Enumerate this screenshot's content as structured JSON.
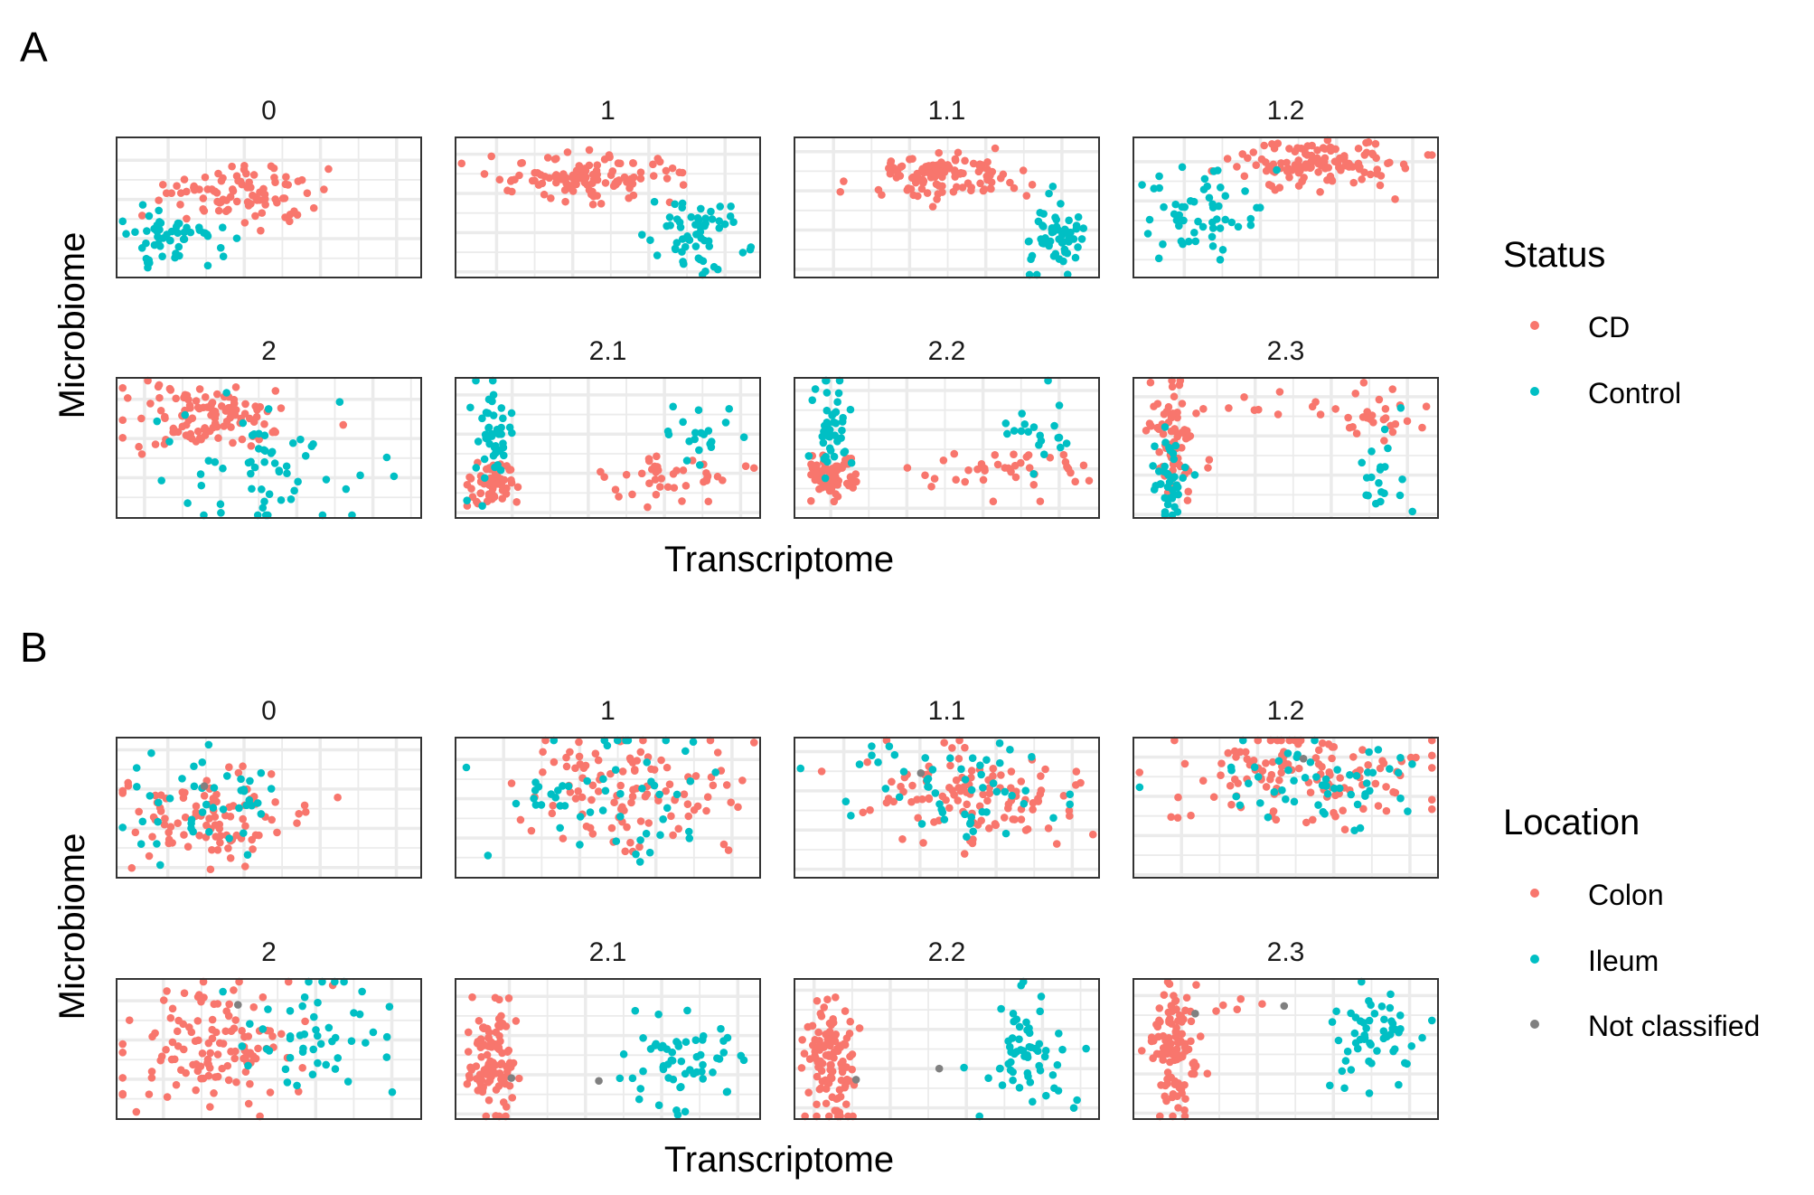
{
  "panels": [
    {
      "label": "A",
      "xlabel": "Transcriptome",
      "ylabel": "Microbiome",
      "legend": {
        "title": "Status",
        "items": [
          {
            "name": "CD",
            "color": "#F8766D"
          },
          {
            "name": "Control",
            "color": "#00BFC4"
          }
        ]
      }
    },
    {
      "label": "B",
      "xlabel": "Transcriptome",
      "ylabel": "Microbiome",
      "legend": {
        "title": "Location",
        "items": [
          {
            "name": "Colon",
            "color": "#F8766D"
          },
          {
            "name": "Ileum",
            "color": "#00BFC4"
          },
          {
            "name": "Not classified",
            "color": "#808080"
          }
        ]
      }
    }
  ],
  "chart_data": [
    {
      "type": "scatter",
      "panel": "A",
      "facets": [
        "0",
        "1",
        "1.1",
        "1.2",
        "2",
        "2.1",
        "2.2",
        "2.3"
      ],
      "xlabel": "Transcriptome",
      "ylabel": "Microbiome",
      "legend_title": "Status",
      "grid": true,
      "axis_ticks_shown": false,
      "clusters": {
        "0": [
          {
            "s": "CD",
            "cx": 0.4,
            "cy": 0.4,
            "sx": 0.13,
            "sy": 0.13,
            "n": 90
          },
          {
            "s": "Control",
            "cx": 0.18,
            "cy": 0.72,
            "sx": 0.08,
            "sy": 0.1,
            "n": 55
          }
        ],
        "1": [
          {
            "s": "CD",
            "cx": 0.42,
            "cy": 0.28,
            "sx": 0.13,
            "sy": 0.09,
            "n": 110
          },
          {
            "s": "Control",
            "cx": 0.8,
            "cy": 0.7,
            "sx": 0.07,
            "sy": 0.14,
            "n": 60
          }
        ],
        "1.1": [
          {
            "s": "CD",
            "cx": 0.48,
            "cy": 0.28,
            "sx": 0.12,
            "sy": 0.09,
            "n": 110
          },
          {
            "s": "Control",
            "cx": 0.85,
            "cy": 0.7,
            "sx": 0.05,
            "sy": 0.13,
            "n": 60
          }
        ],
        "1.2": [
          {
            "s": "CD",
            "cx": 0.62,
            "cy": 0.18,
            "sx": 0.15,
            "sy": 0.08,
            "n": 120
          },
          {
            "s": "Control",
            "cx": 0.2,
            "cy": 0.55,
            "sx": 0.1,
            "sy": 0.18,
            "n": 55
          }
        ],
        "2": [
          {
            "s": "CD",
            "cx": 0.3,
            "cy": 0.3,
            "sx": 0.13,
            "sy": 0.12,
            "n": 110
          },
          {
            "s": "Control",
            "cx": 0.5,
            "cy": 0.65,
            "sx": 0.15,
            "sy": 0.2,
            "n": 60
          }
        ],
        "2.1": [
          {
            "s": "CD",
            "cx": 0.12,
            "cy": 0.75,
            "sx": 0.04,
            "sy": 0.08,
            "n": 60
          },
          {
            "s": "CD",
            "cx": 0.7,
            "cy": 0.72,
            "sx": 0.13,
            "sy": 0.08,
            "n": 40
          },
          {
            "s": "Control",
            "cx": 0.12,
            "cy": 0.4,
            "sx": 0.03,
            "sy": 0.18,
            "n": 45
          },
          {
            "s": "Control",
            "cx": 0.8,
            "cy": 0.4,
            "sx": 0.06,
            "sy": 0.12,
            "n": 20
          }
        ],
        "2.2": [
          {
            "s": "CD",
            "cx": 0.12,
            "cy": 0.72,
            "sx": 0.04,
            "sy": 0.09,
            "n": 70
          },
          {
            "s": "CD",
            "cx": 0.7,
            "cy": 0.68,
            "sx": 0.14,
            "sy": 0.09,
            "n": 40
          },
          {
            "s": "Control",
            "cx": 0.12,
            "cy": 0.35,
            "sx": 0.03,
            "sy": 0.18,
            "n": 45
          },
          {
            "s": "Control",
            "cx": 0.8,
            "cy": 0.4,
            "sx": 0.06,
            "sy": 0.14,
            "n": 20
          }
        ],
        "2.3": [
          {
            "s": "CD",
            "cx": 0.13,
            "cy": 0.4,
            "sx": 0.04,
            "sy": 0.22,
            "n": 70
          },
          {
            "s": "CD",
            "cx": 0.78,
            "cy": 0.25,
            "sx": 0.09,
            "sy": 0.1,
            "n": 25
          },
          {
            "s": "CD",
            "cx": 0.5,
            "cy": 0.2,
            "sx": 0.1,
            "sy": 0.05,
            "n": 10
          },
          {
            "s": "Control",
            "cx": 0.11,
            "cy": 0.7,
            "sx": 0.03,
            "sy": 0.2,
            "n": 40
          },
          {
            "s": "Control",
            "cx": 0.82,
            "cy": 0.65,
            "sx": 0.05,
            "sy": 0.18,
            "n": 20
          }
        ]
      }
    },
    {
      "type": "scatter",
      "panel": "B",
      "facets": [
        "0",
        "1",
        "1.1",
        "1.2",
        "2",
        "2.1",
        "2.2",
        "2.3"
      ],
      "xlabel": "Transcriptome",
      "ylabel": "Microbiome",
      "legend_title": "Location",
      "grid": true,
      "axis_ticks_shown": false,
      "clusters": {
        "0": [
          {
            "s": "Colon",
            "cx": 0.3,
            "cy": 0.55,
            "sx": 0.14,
            "sy": 0.18,
            "n": 95
          },
          {
            "s": "Ileum",
            "cx": 0.28,
            "cy": 0.5,
            "sx": 0.14,
            "sy": 0.2,
            "n": 45
          },
          {
            "s": "Not classified",
            "cx": 0.28,
            "cy": 0.35,
            "sx": 0.01,
            "sy": 0.01,
            "n": 1
          }
        ],
        "1": [
          {
            "s": "Colon",
            "cx": 0.55,
            "cy": 0.4,
            "sx": 0.18,
            "sy": 0.2,
            "n": 110
          },
          {
            "s": "Ileum",
            "cx": 0.5,
            "cy": 0.4,
            "sx": 0.2,
            "sy": 0.22,
            "n": 55
          }
        ],
        "1.1": [
          {
            "s": "Colon",
            "cx": 0.58,
            "cy": 0.42,
            "sx": 0.18,
            "sy": 0.2,
            "n": 110
          },
          {
            "s": "Ileum",
            "cx": 0.55,
            "cy": 0.35,
            "sx": 0.18,
            "sy": 0.18,
            "n": 55
          },
          {
            "s": "Not classified",
            "cx": 0.4,
            "cy": 0.25,
            "sx": 0.01,
            "sy": 0.01,
            "n": 1
          }
        ],
        "1.2": [
          {
            "s": "Colon",
            "cx": 0.55,
            "cy": 0.3,
            "sx": 0.22,
            "sy": 0.18,
            "n": 120
          },
          {
            "s": "Ileum",
            "cx": 0.6,
            "cy": 0.3,
            "sx": 0.2,
            "sy": 0.2,
            "n": 55
          },
          {
            "s": "Not classified",
            "cx": 0.55,
            "cy": 0.15,
            "sx": 0.01,
            "sy": 0.01,
            "n": 1
          }
        ],
        "2": [
          {
            "s": "Colon",
            "cx": 0.32,
            "cy": 0.45,
            "sx": 0.15,
            "sy": 0.22,
            "n": 120
          },
          {
            "s": "Ileum",
            "cx": 0.62,
            "cy": 0.4,
            "sx": 0.14,
            "sy": 0.2,
            "n": 50
          },
          {
            "s": "Not classified",
            "cx": 0.4,
            "cy": 0.18,
            "sx": 0.01,
            "sy": 0.01,
            "n": 1
          }
        ],
        "2.1": [
          {
            "s": "Colon",
            "cx": 0.12,
            "cy": 0.6,
            "sx": 0.04,
            "sy": 0.2,
            "n": 100
          },
          {
            "s": "Ileum",
            "cx": 0.73,
            "cy": 0.6,
            "sx": 0.1,
            "sy": 0.2,
            "n": 60
          },
          {
            "s": "Not classified",
            "cx": 0.48,
            "cy": 0.72,
            "sx": 0.01,
            "sy": 0.01,
            "n": 1
          },
          {
            "s": "Not classified",
            "cx": 0.18,
            "cy": 0.72,
            "sx": 0.01,
            "sy": 0.01,
            "n": 1
          }
        ],
        "2.2": [
          {
            "s": "Colon",
            "cx": 0.12,
            "cy": 0.6,
            "sx": 0.04,
            "sy": 0.2,
            "n": 110
          },
          {
            "s": "Ileum",
            "cx": 0.75,
            "cy": 0.55,
            "sx": 0.1,
            "sy": 0.2,
            "n": 60
          },
          {
            "s": "Not classified",
            "cx": 0.49,
            "cy": 0.65,
            "sx": 0.01,
            "sy": 0.01,
            "n": 1
          },
          {
            "s": "Not classified",
            "cx": 0.2,
            "cy": 0.72,
            "sx": 0.01,
            "sy": 0.01,
            "n": 1
          }
        ],
        "2.3": [
          {
            "s": "Colon",
            "cx": 0.13,
            "cy": 0.5,
            "sx": 0.04,
            "sy": 0.25,
            "n": 110
          },
          {
            "s": "Colon",
            "cx": 0.38,
            "cy": 0.17,
            "sx": 0.05,
            "sy": 0.03,
            "n": 4
          },
          {
            "s": "Ileum",
            "cx": 0.8,
            "cy": 0.4,
            "sx": 0.09,
            "sy": 0.2,
            "n": 55
          },
          {
            "s": "Not classified",
            "cx": 0.5,
            "cy": 0.2,
            "sx": 0.01,
            "sy": 0.01,
            "n": 1
          },
          {
            "s": "Not classified",
            "cx": 0.2,
            "cy": 0.25,
            "sx": 0.01,
            "sy": 0.01,
            "n": 1
          }
        ]
      }
    }
  ]
}
